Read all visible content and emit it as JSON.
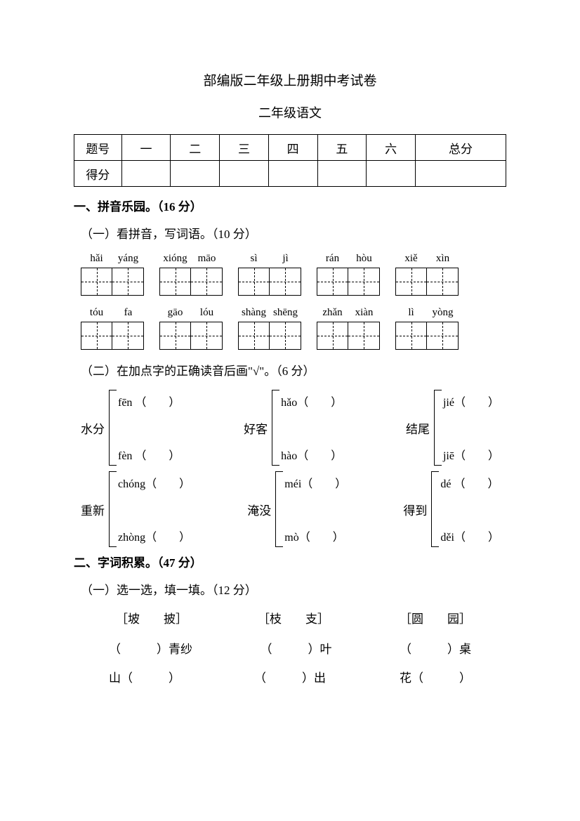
{
  "title": "部编版二年级上册期中考试卷",
  "subtitle": "二年级语文",
  "score_table": {
    "header_label": "题号",
    "score_label": "得分",
    "columns": [
      "一",
      "二",
      "三",
      "四",
      "五",
      "六",
      "总分"
    ]
  },
  "section1": {
    "title": "一、拼音乐园。（16 分）",
    "sub1": {
      "title": "（一）看拼音，写词语。（10 分）",
      "row1": [
        {
          "p1": "hǎi",
          "p2": "yáng"
        },
        {
          "p1": "xióng",
          "p2": "māo"
        },
        {
          "p1": "sì",
          "p2": "jì"
        },
        {
          "p1": "rán",
          "p2": "hòu"
        },
        {
          "p1": "xiě",
          "p2": "xìn"
        }
      ],
      "row2": [
        {
          "p1": "tóu",
          "p2": "fa"
        },
        {
          "p1": "gāo",
          "p2": "lóu"
        },
        {
          "p1": "shàng",
          "p2": "shēng"
        },
        {
          "p1": "zhǎn",
          "p2": "xiàn"
        },
        {
          "p1": "lì",
          "p2": "yòng"
        }
      ]
    },
    "sub2": {
      "title": "（二）在加点字的正确读音后画\"√\"。（6 分）",
      "groups": [
        [
          {
            "word": "水分",
            "opts": [
              "fēn （　　）",
              "fèn （　　）"
            ]
          },
          {
            "word": "好客",
            "opts": [
              "hǎo（　　）",
              "hào（　　）"
            ]
          },
          {
            "word": "结尾",
            "opts": [
              "jié（　　）",
              "jiē（　　）"
            ]
          }
        ],
        [
          {
            "word": "重新",
            "opts": [
              "chóng（　　）",
              "zhòng（　　）"
            ]
          },
          {
            "word": "淹没",
            "opts": [
              "méi（　　）",
              " mò（　　）"
            ]
          },
          {
            "word": "得到",
            "opts": [
              "dé （　　）",
              "děi（　　）"
            ]
          }
        ]
      ]
    }
  },
  "section2": {
    "title": "二、字词积累。（47 分）",
    "sub1": {
      "title": "（一）选一选，填一填。（12 分）",
      "choice_groups": [
        "［坡　　披］",
        "［枝　　支］",
        "［圆　　园］"
      ],
      "fill_row1": [
        "（　　　）青纱",
        "（　　　）叶",
        "（　　　）桌"
      ],
      "fill_row2": [
        "山（　　　）",
        "（　　　）出",
        "花（　　　）"
      ]
    }
  }
}
